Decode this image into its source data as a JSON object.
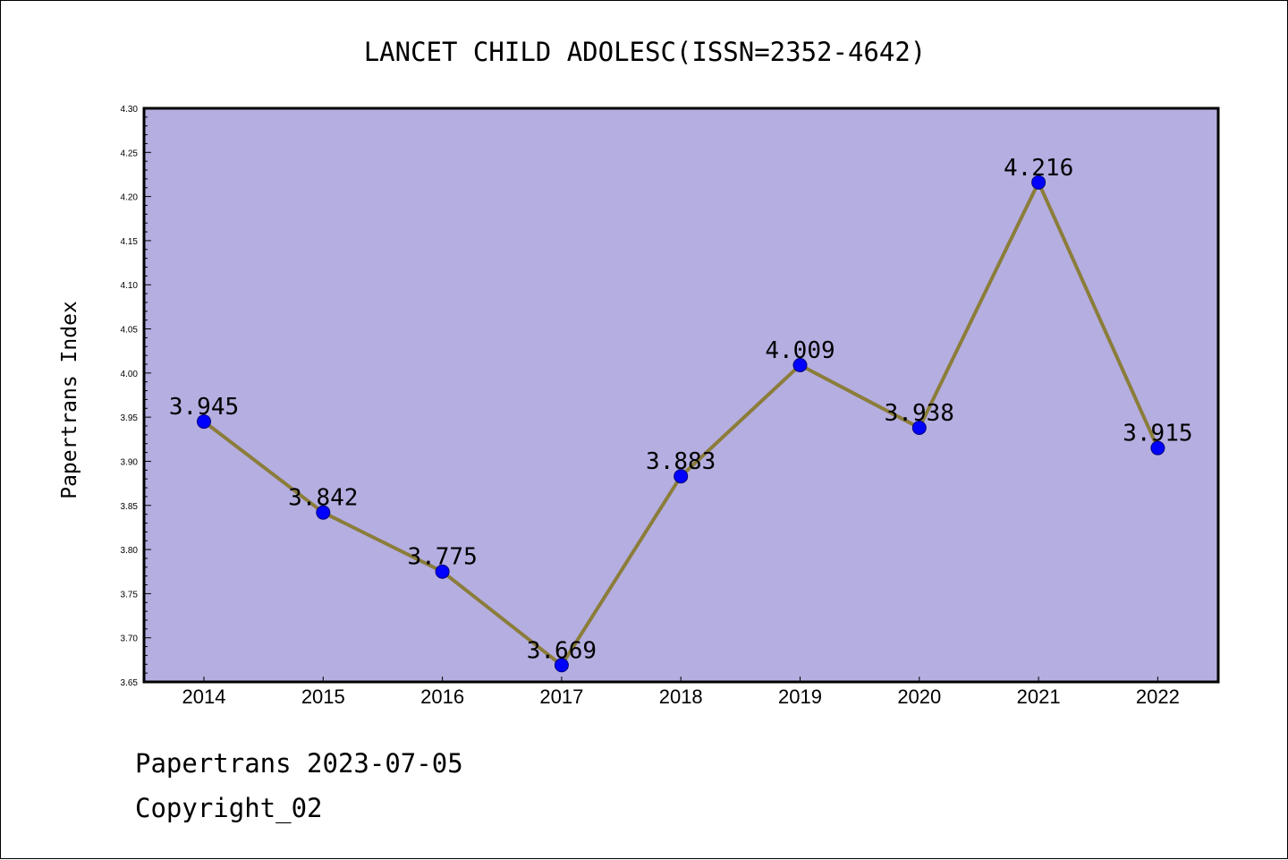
{
  "chart_data": {
    "type": "line",
    "title": "LANCET CHILD ADOLESC(ISSN=2352-4642)",
    "ylabel": "Papertrans Index",
    "xlabel": "",
    "categories": [
      "2014",
      "2015",
      "2016",
      "2017",
      "2018",
      "2019",
      "2020",
      "2021",
      "2022"
    ],
    "series": [
      {
        "values": [
          3.945,
          3.842,
          3.775,
          3.669,
          3.883,
          4.009,
          3.938,
          4.216,
          3.915
        ],
        "labels": [
          "3.945",
          "3.842",
          "3.775",
          "3.669",
          "3.883",
          "4.009",
          "3.938",
          "4.216",
          "3.915"
        ]
      }
    ],
    "ylim": [
      3.65,
      4.3
    ],
    "yticks": [
      "3.65",
      "3.70",
      "3.75",
      "3.80",
      "3.85",
      "3.90",
      "3.95",
      "4.00",
      "4.05",
      "4.10",
      "4.15",
      "4.20",
      "4.25",
      "4.30"
    ],
    "grid": false,
    "colors": {
      "plot_background": "#b5aee1",
      "line": "#8b7d3a",
      "marker": "#0000ff",
      "marker_edge": "#00007a"
    }
  },
  "footer": {
    "line1": "Papertrans 2023-07-05",
    "line2": "Copyright_02"
  }
}
